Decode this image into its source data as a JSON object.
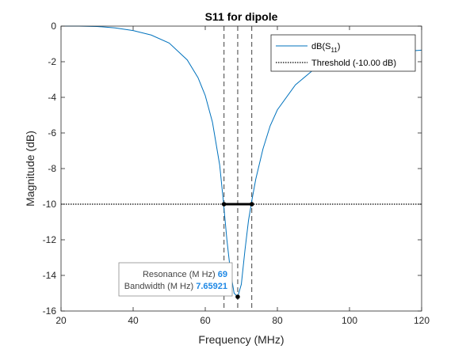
{
  "chart_data": {
    "type": "line",
    "title": "S11 for dipole",
    "xlabel": "Frequency (MHz)",
    "ylabel": "Magnitude (dB)",
    "xlim": [
      20,
      120
    ],
    "ylim": [
      -16,
      0
    ],
    "xticks": [
      20,
      40,
      60,
      80,
      100,
      120
    ],
    "yticks": [
      0,
      -2,
      -4,
      -6,
      -8,
      -10,
      -12,
      -14,
      -16
    ],
    "grid": false,
    "legend_position": "top-right",
    "series": [
      {
        "name": "dB(S11)",
        "color": "#0072BD",
        "x": [
          20,
          25,
          30,
          35,
          40,
          45,
          50,
          55,
          58,
          60,
          62,
          64,
          65,
          66,
          67,
          68,
          69,
          70,
          71,
          72,
          73,
          74,
          76,
          78,
          80,
          85,
          90,
          95,
          100,
          105,
          110,
          115,
          120
        ],
        "y": [
          0,
          0,
          -0.02,
          -0.1,
          -0.25,
          -0.5,
          -0.95,
          -1.9,
          -2.9,
          -3.9,
          -5.4,
          -7.8,
          -9.8,
          -12.0,
          -13.8,
          -15.0,
          -15.2,
          -14.5,
          -12.6,
          -10.9,
          -9.7,
          -8.6,
          -6.9,
          -5.6,
          -4.7,
          -3.3,
          -2.45,
          -2.05,
          -1.8,
          -1.65,
          -1.5,
          -1.42,
          -1.35
        ]
      },
      {
        "name": "Threshold (-10.00 dB)",
        "color": "#000000",
        "x": [
          20,
          120
        ],
        "y": [
          -10,
          -10
        ]
      }
    ],
    "bandwidth_bar": {
      "x": [
        65.2,
        72.9
      ],
      "y": -10
    },
    "vertical_markers": [
      65.2,
      69,
      72.9
    ],
    "resonance_point": {
      "x": 69,
      "y": -15.2
    },
    "datatip": {
      "resonance_label": "Resonance (M Hz)",
      "resonance_value": "69",
      "bandwidth_label": "Bandwidth (M Hz)",
      "bandwidth_value": "7.65921",
      "value_color": "#1E88E5"
    }
  }
}
